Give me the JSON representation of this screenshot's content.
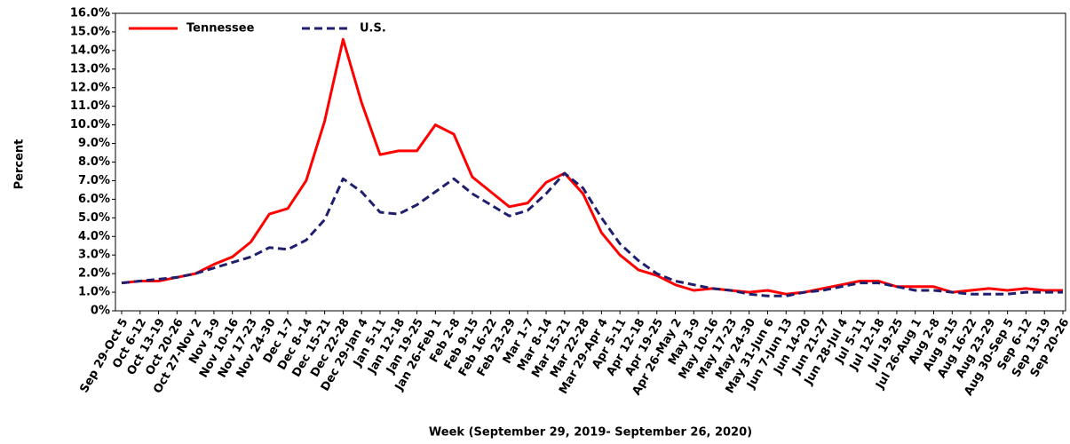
{
  "chart_data": {
    "type": "line",
    "x_label": "Week (September 29, 2019- September 26, 2020)",
    "y_label": "Percent",
    "categories": [
      "Sep 29-Oct 5",
      "Oct 6-12",
      "Oct 13-19",
      "Oct 20-26",
      "Oct 27-Nov 2",
      "Nov 3-9",
      "Nov 10-16",
      "Nov 17-23",
      "Nov 24-30",
      "Dec 1-7",
      "Dec 8-14",
      "Dec 15-21",
      "Dec 22-28",
      "Dec 29-Jan 4",
      "Jan 5-11",
      "Jan 12-18",
      "Jan 19-25",
      "Jan 26-Feb 1",
      "Feb 2-8",
      "Feb 9-15",
      "Feb 16-22",
      "Feb 23-29",
      "Mar 1-7",
      "Mar 8-14",
      "Mar 15-21",
      "Mar 22-28",
      "Mar 29-Apr 4",
      "Apr 5-11",
      "Apr 12-18",
      "Apr 19-25",
      "Apr 26-May 2",
      "May 3-9",
      "May 10-16",
      "May 17-23",
      "May 24-30",
      "May 31-Jun 6",
      "Jun 7-Jun 13",
      "Jun 14-20",
      "Jun 21-27",
      "Jun 28-Jul 4",
      "Jul 5-11",
      "Jul 12-18",
      "Jul 19-25",
      "Jul 26-Aug 1",
      "Aug 2-8",
      "Aug 9-15",
      "Aug 16-22",
      "Aug 23-29",
      "Aug 30-Sep 5",
      "Sep 6-12",
      "Sep 13-19",
      "Sep 20-26"
    ],
    "series": [
      {
        "name": "Tennessee",
        "color": "#ff0000",
        "dash": false,
        "values": [
          1.5,
          1.6,
          1.6,
          1.8,
          2.0,
          2.5,
          2.9,
          3.7,
          5.2,
          5.5,
          7.0,
          10.2,
          14.6,
          11.2,
          8.4,
          8.6,
          8.6,
          10.0,
          9.5,
          7.2,
          6.4,
          5.6,
          5.8,
          6.9,
          7.4,
          6.3,
          4.2,
          3.0,
          2.2,
          1.9,
          1.4,
          1.1,
          1.2,
          1.1,
          1.0,
          1.1,
          0.9,
          1.0,
          1.2,
          1.4,
          1.6,
          1.6,
          1.3,
          1.3,
          1.3,
          1.0,
          1.1,
          1.2,
          1.1,
          1.2,
          1.1,
          1.1
        ]
      },
      {
        "name": "U.S.",
        "color": "#1f1f6e",
        "dash": true,
        "values": [
          1.5,
          1.6,
          1.7,
          1.8,
          2.0,
          2.3,
          2.6,
          2.9,
          3.4,
          3.3,
          3.8,
          4.9,
          7.1,
          6.4,
          5.3,
          5.2,
          5.7,
          6.4,
          7.1,
          6.3,
          5.7,
          5.1,
          5.4,
          6.3,
          7.4,
          6.6,
          5.0,
          3.6,
          2.7,
          2.0,
          1.6,
          1.4,
          1.2,
          1.1,
          0.9,
          0.8,
          0.8,
          1.0,
          1.1,
          1.3,
          1.5,
          1.5,
          1.3,
          1.1,
          1.1,
          1.0,
          0.9,
          0.9,
          0.9,
          1.0,
          1.0,
          1.0
        ]
      }
    ],
    "ylim": [
      0,
      16
    ],
    "yticks": [
      {
        "value": 0,
        "label": "0%"
      },
      {
        "value": 1,
        "label": "1.0%"
      },
      {
        "value": 2,
        "label": "2.0%"
      },
      {
        "value": 3,
        "label": "3.0%"
      },
      {
        "value": 4,
        "label": "4.0%"
      },
      {
        "value": 5,
        "label": "5.0%"
      },
      {
        "value": 6,
        "label": "6.0%"
      },
      {
        "value": 7,
        "label": "7.0%"
      },
      {
        "value": 8,
        "label": "8.0%"
      },
      {
        "value": 9,
        "label": "9.0%"
      },
      {
        "value": 10,
        "label": "10.0%"
      },
      {
        "value": 11,
        "label": "11.0%"
      },
      {
        "value": 12,
        "label": "12.0%"
      },
      {
        "value": 13,
        "label": "13.0%"
      },
      {
        "value": 14,
        "label": "14.0%"
      },
      {
        "value": 15,
        "label": "15.0%"
      },
      {
        "value": 16,
        "label": "16.0%"
      }
    ],
    "legend": "top-left"
  }
}
